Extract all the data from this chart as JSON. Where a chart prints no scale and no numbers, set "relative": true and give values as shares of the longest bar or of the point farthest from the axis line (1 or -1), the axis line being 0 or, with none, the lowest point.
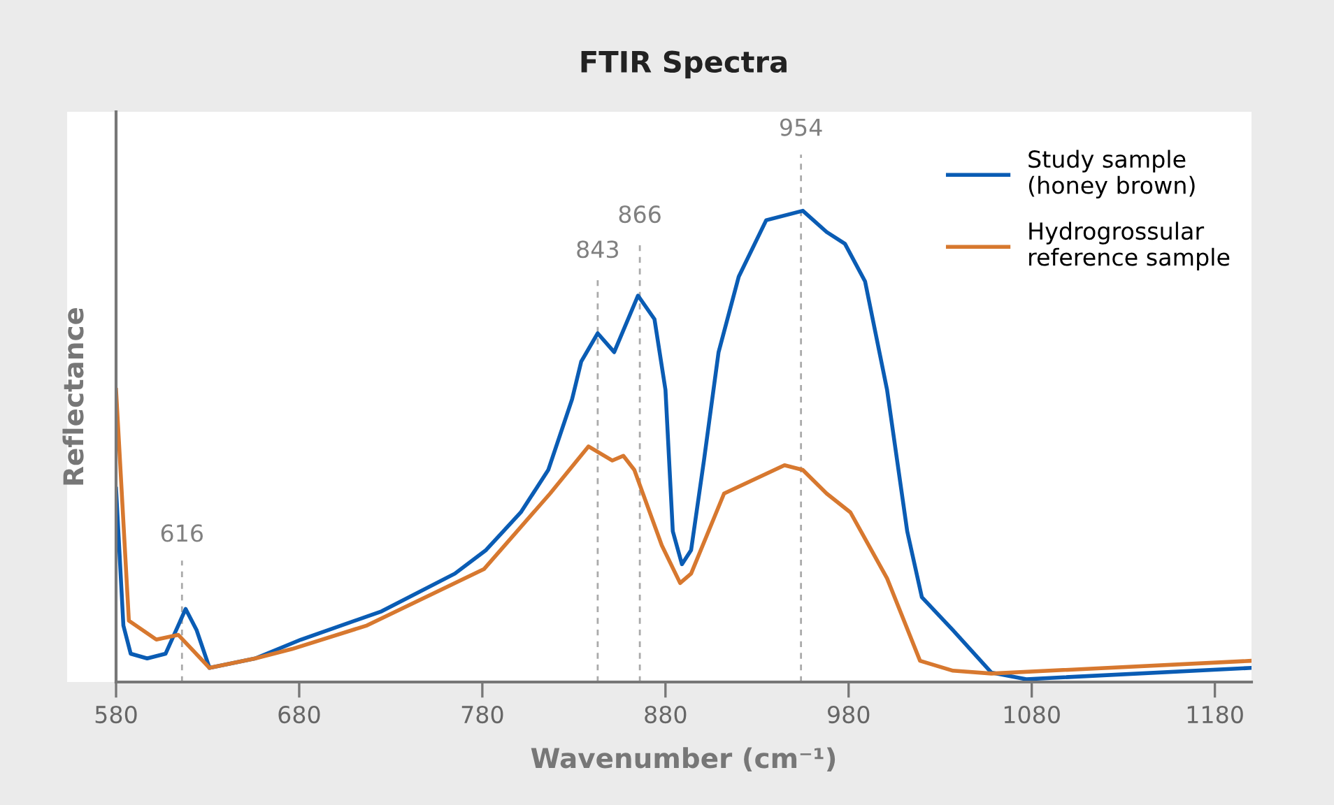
{
  "chart_data": {
    "type": "line",
    "title": "FTIR Spectra",
    "xlabel": "Wavenumber (cm⁻¹)",
    "ylabel": "Reflectance",
    "relative": true,
    "xlim": [
      580,
      1200
    ],
    "xticks": [
      580,
      680,
      780,
      880,
      980,
      1080,
      1180
    ],
    "grid": false,
    "legend": "top right",
    "series": [
      {
        "name": "Study sample\n(honey brown)",
        "color": "#0a5cb4",
        "x": [
          580,
          584,
          588,
          597,
          607,
          618,
          624,
          631,
          656,
          681,
          725,
          765,
          782,
          801,
          816,
          829,
          834,
          843,
          852,
          865,
          874,
          880,
          884,
          889,
          894,
          901,
          909,
          920,
          935,
          955,
          968,
          978,
          989,
          1001,
          1012,
          1020,
          1037,
          1058,
          1077,
          1200
        ],
        "values": [
          0.41,
          0.12,
          0.06,
          0.05,
          0.06,
          0.155,
          0.11,
          0.03,
          0.05,
          0.09,
          0.15,
          0.23,
          0.28,
          0.36,
          0.45,
          0.6,
          0.68,
          0.74,
          0.7,
          0.82,
          0.77,
          0.62,
          0.32,
          0.25,
          0.28,
          0.47,
          0.7,
          0.86,
          0.98,
          1.0,
          0.955,
          0.93,
          0.85,
          0.62,
          0.32,
          0.18,
          0.11,
          0.02,
          0.006,
          0.03
        ]
      },
      {
        "name": "Hydrogrossular\nreference sample",
        "color": "#d7782f",
        "x": [
          580,
          587,
          602,
          614,
          631,
          656,
          676,
          717,
          781,
          817,
          838,
          851,
          857,
          863,
          878,
          888,
          894,
          912,
          945,
          955,
          968,
          981,
          1001,
          1019,
          1037,
          1058,
          1200
        ],
        "values": [
          0.62,
          0.13,
          0.09,
          0.1,
          0.03,
          0.05,
          0.07,
          0.12,
          0.24,
          0.4,
          0.5,
          0.47,
          0.48,
          0.45,
          0.29,
          0.21,
          0.23,
          0.4,
          0.46,
          0.45,
          0.4,
          0.36,
          0.22,
          0.045,
          0.024,
          0.018,
          0.045
        ]
      }
    ],
    "ref_lines": [
      {
        "axis": "x",
        "value": 616,
        "label": "616",
        "color": "#aaaaaa",
        "line_style": "dashed"
      },
      {
        "axis": "x",
        "value": 843,
        "label": "843",
        "color": "#aaaaaa",
        "line_style": "dashed"
      },
      {
        "axis": "x",
        "value": 866,
        "label": "866",
        "color": "#aaaaaa",
        "line_style": "dashed"
      },
      {
        "axis": "x",
        "value": 954,
        "label": "954",
        "color": "#aaaaaa",
        "line_style": "dashed"
      }
    ]
  }
}
